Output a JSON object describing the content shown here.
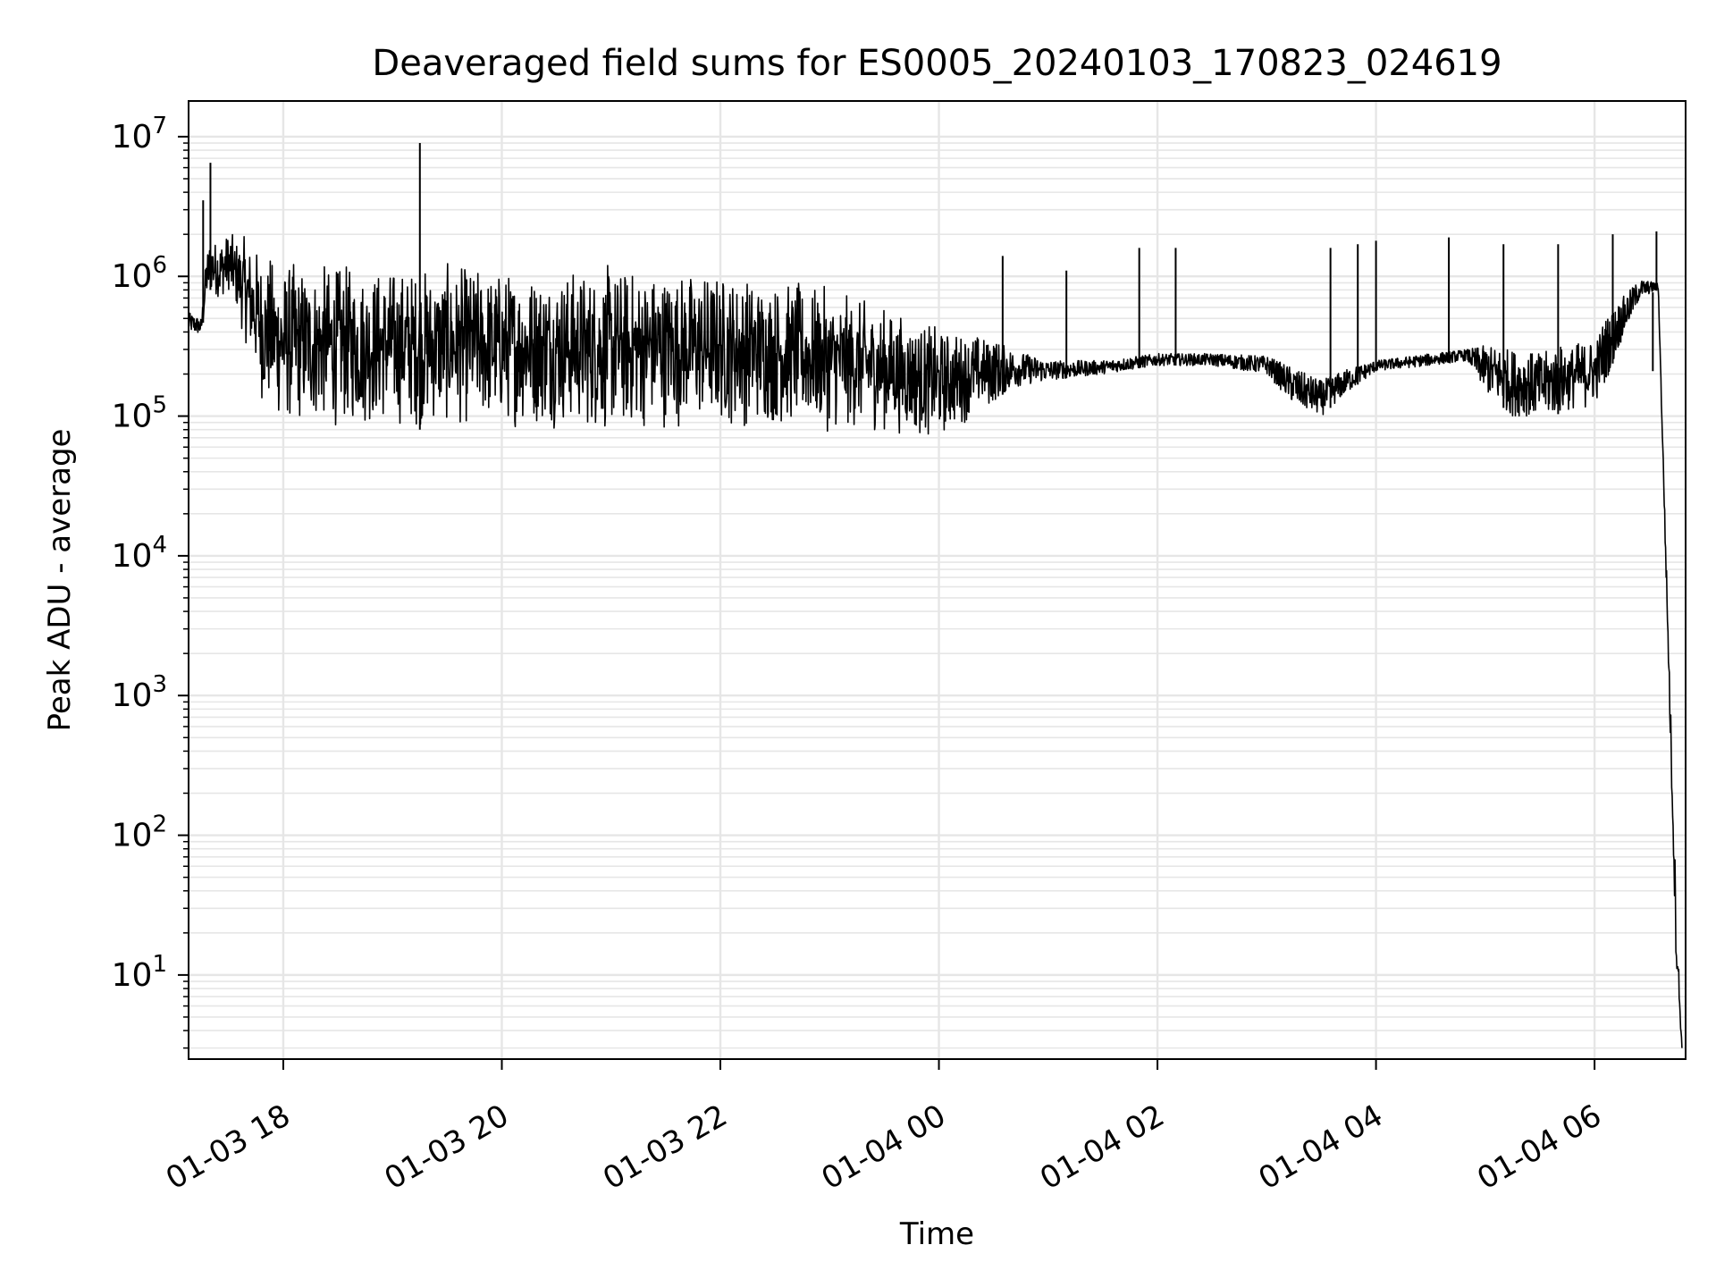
{
  "chart_data": {
    "type": "line",
    "title": "Deaveraged field sums for ES0005_20240103_170823_024619",
    "xlabel": "Time",
    "ylabel": "Peak ADU - average",
    "y_scale": "log",
    "ylim": [
      2.5,
      18000000
    ],
    "xlim": [
      "01-03 17:08",
      "01-04 06:50"
    ],
    "x_ticks": [
      {
        "label": "01-03 18",
        "value": "01-03 18:00"
      },
      {
        "label": "01-03 20",
        "value": "01-03 20:00"
      },
      {
        "label": "01-03 22",
        "value": "01-03 22:00"
      },
      {
        "label": "01-04 00",
        "value": "01-04 00:00"
      },
      {
        "label": "01-04 02",
        "value": "01-04 02:00"
      },
      {
        "label": "01-04 04",
        "value": "01-04 04:00"
      },
      {
        "label": "01-04 06",
        "value": "01-04 06:00"
      }
    ],
    "y_ticks": [
      {
        "base": "10",
        "exp": "1",
        "value": 10
      },
      {
        "base": "10",
        "exp": "2",
        "value": 100
      },
      {
        "base": "10",
        "exp": "3",
        "value": 1000
      },
      {
        "base": "10",
        "exp": "4",
        "value": 10000
      },
      {
        "base": "10",
        "exp": "5",
        "value": 100000
      },
      {
        "base": "10",
        "exp": "6",
        "value": 1000000
      },
      {
        "base": "10",
        "exp": "7",
        "value": 10000000
      }
    ],
    "grid": true,
    "line_color": "#000000",
    "grid_color": "#e6e6e6",
    "series": [
      {
        "x": [
          "01-03 17:08",
          "01-03 17:15",
          "01-03 17:18",
          "01-03 17:20",
          "01-03 17:25",
          "01-03 17:30",
          "01-03 17:40",
          "01-03 17:50",
          "01-03 18:00",
          "01-03 18:30",
          "01-03 19:00",
          "01-03 19:30",
          "01-03 20:00",
          "01-03 20:30",
          "01-03 21:00",
          "01-03 21:30",
          "01-03 22:00",
          "01-03 22:30",
          "01-03 23:00",
          "01-03 23:30",
          "01-04 00:00",
          "01-04 00:20",
          "01-04 00:40",
          "01-04 01:00",
          "01-04 01:30",
          "01-04 02:00",
          "01-04 02:30",
          "01-04 03:00",
          "01-04 03:15",
          "01-04 03:30",
          "01-04 03:45",
          "01-04 04:00",
          "01-04 04:30",
          "01-04 04:50",
          "01-04 05:00",
          "01-04 05:15",
          "01-04 05:30",
          "01-04 06:00",
          "01-04 06:15",
          "01-04 06:25",
          "01-04 06:35",
          "01-04 06:40",
          "01-04 06:45",
          "01-04 06:48"
        ],
        "upper": [
          550000,
          500000,
          1500000,
          1800000,
          1700000,
          2000000,
          2000000,
          1600000,
          1400000,
          1300000,
          1300000,
          1300000,
          1250000,
          1250000,
          1300000,
          1250000,
          1200000,
          1050000,
          850000,
          650000,
          450000,
          420000,
          300000,
          250000,
          250000,
          280000,
          280000,
          270000,
          220000,
          180000,
          220000,
          250000,
          280000,
          300000,
          320000,
          300000,
          280000,
          400000,
          700000,
          950000,
          900000,
          5000,
          30,
          3
        ],
        "lower": [
          400000,
          380000,
          700000,
          800000,
          700000,
          800000,
          300000,
          100000,
          80000,
          80000,
          80000,
          80000,
          80000,
          80000,
          70000,
          80000,
          80000,
          80000,
          75000,
          75000,
          65000,
          100000,
          160000,
          180000,
          200000,
          230000,
          230000,
          200000,
          120000,
          100000,
          150000,
          210000,
          230000,
          250000,
          150000,
          100000,
          100000,
          110000,
          350000,
          700000,
          800000,
          3000,
          10,
          3
        ]
      }
    ],
    "spikes": [
      {
        "x": "01-03 17:16",
        "y": 3500000
      },
      {
        "x": "01-03 17:20",
        "y": 6500000
      },
      {
        "x": "01-03 19:15",
        "y": 9000000
      },
      {
        "x": "01-04 00:35",
        "y": 1400000
      },
      {
        "x": "01-04 01:10",
        "y": 1100000
      },
      {
        "x": "01-04 01:50",
        "y": 1600000
      },
      {
        "x": "01-04 02:10",
        "y": 1600000
      },
      {
        "x": "01-04 03:35",
        "y": 1600000
      },
      {
        "x": "01-04 03:50",
        "y": 1700000
      },
      {
        "x": "01-04 04:00",
        "y": 1800000
      },
      {
        "x": "01-04 04:40",
        "y": 1900000
      },
      {
        "x": "01-04 05:10",
        "y": 1700000
      },
      {
        "x": "01-04 05:40",
        "y": 1700000
      },
      {
        "x": "01-04 06:10",
        "y": 2000000
      },
      {
        "x": "01-04 06:34",
        "y": 2100000
      },
      {
        "x": "01-04 06:32",
        "y": 210000
      }
    ]
  }
}
